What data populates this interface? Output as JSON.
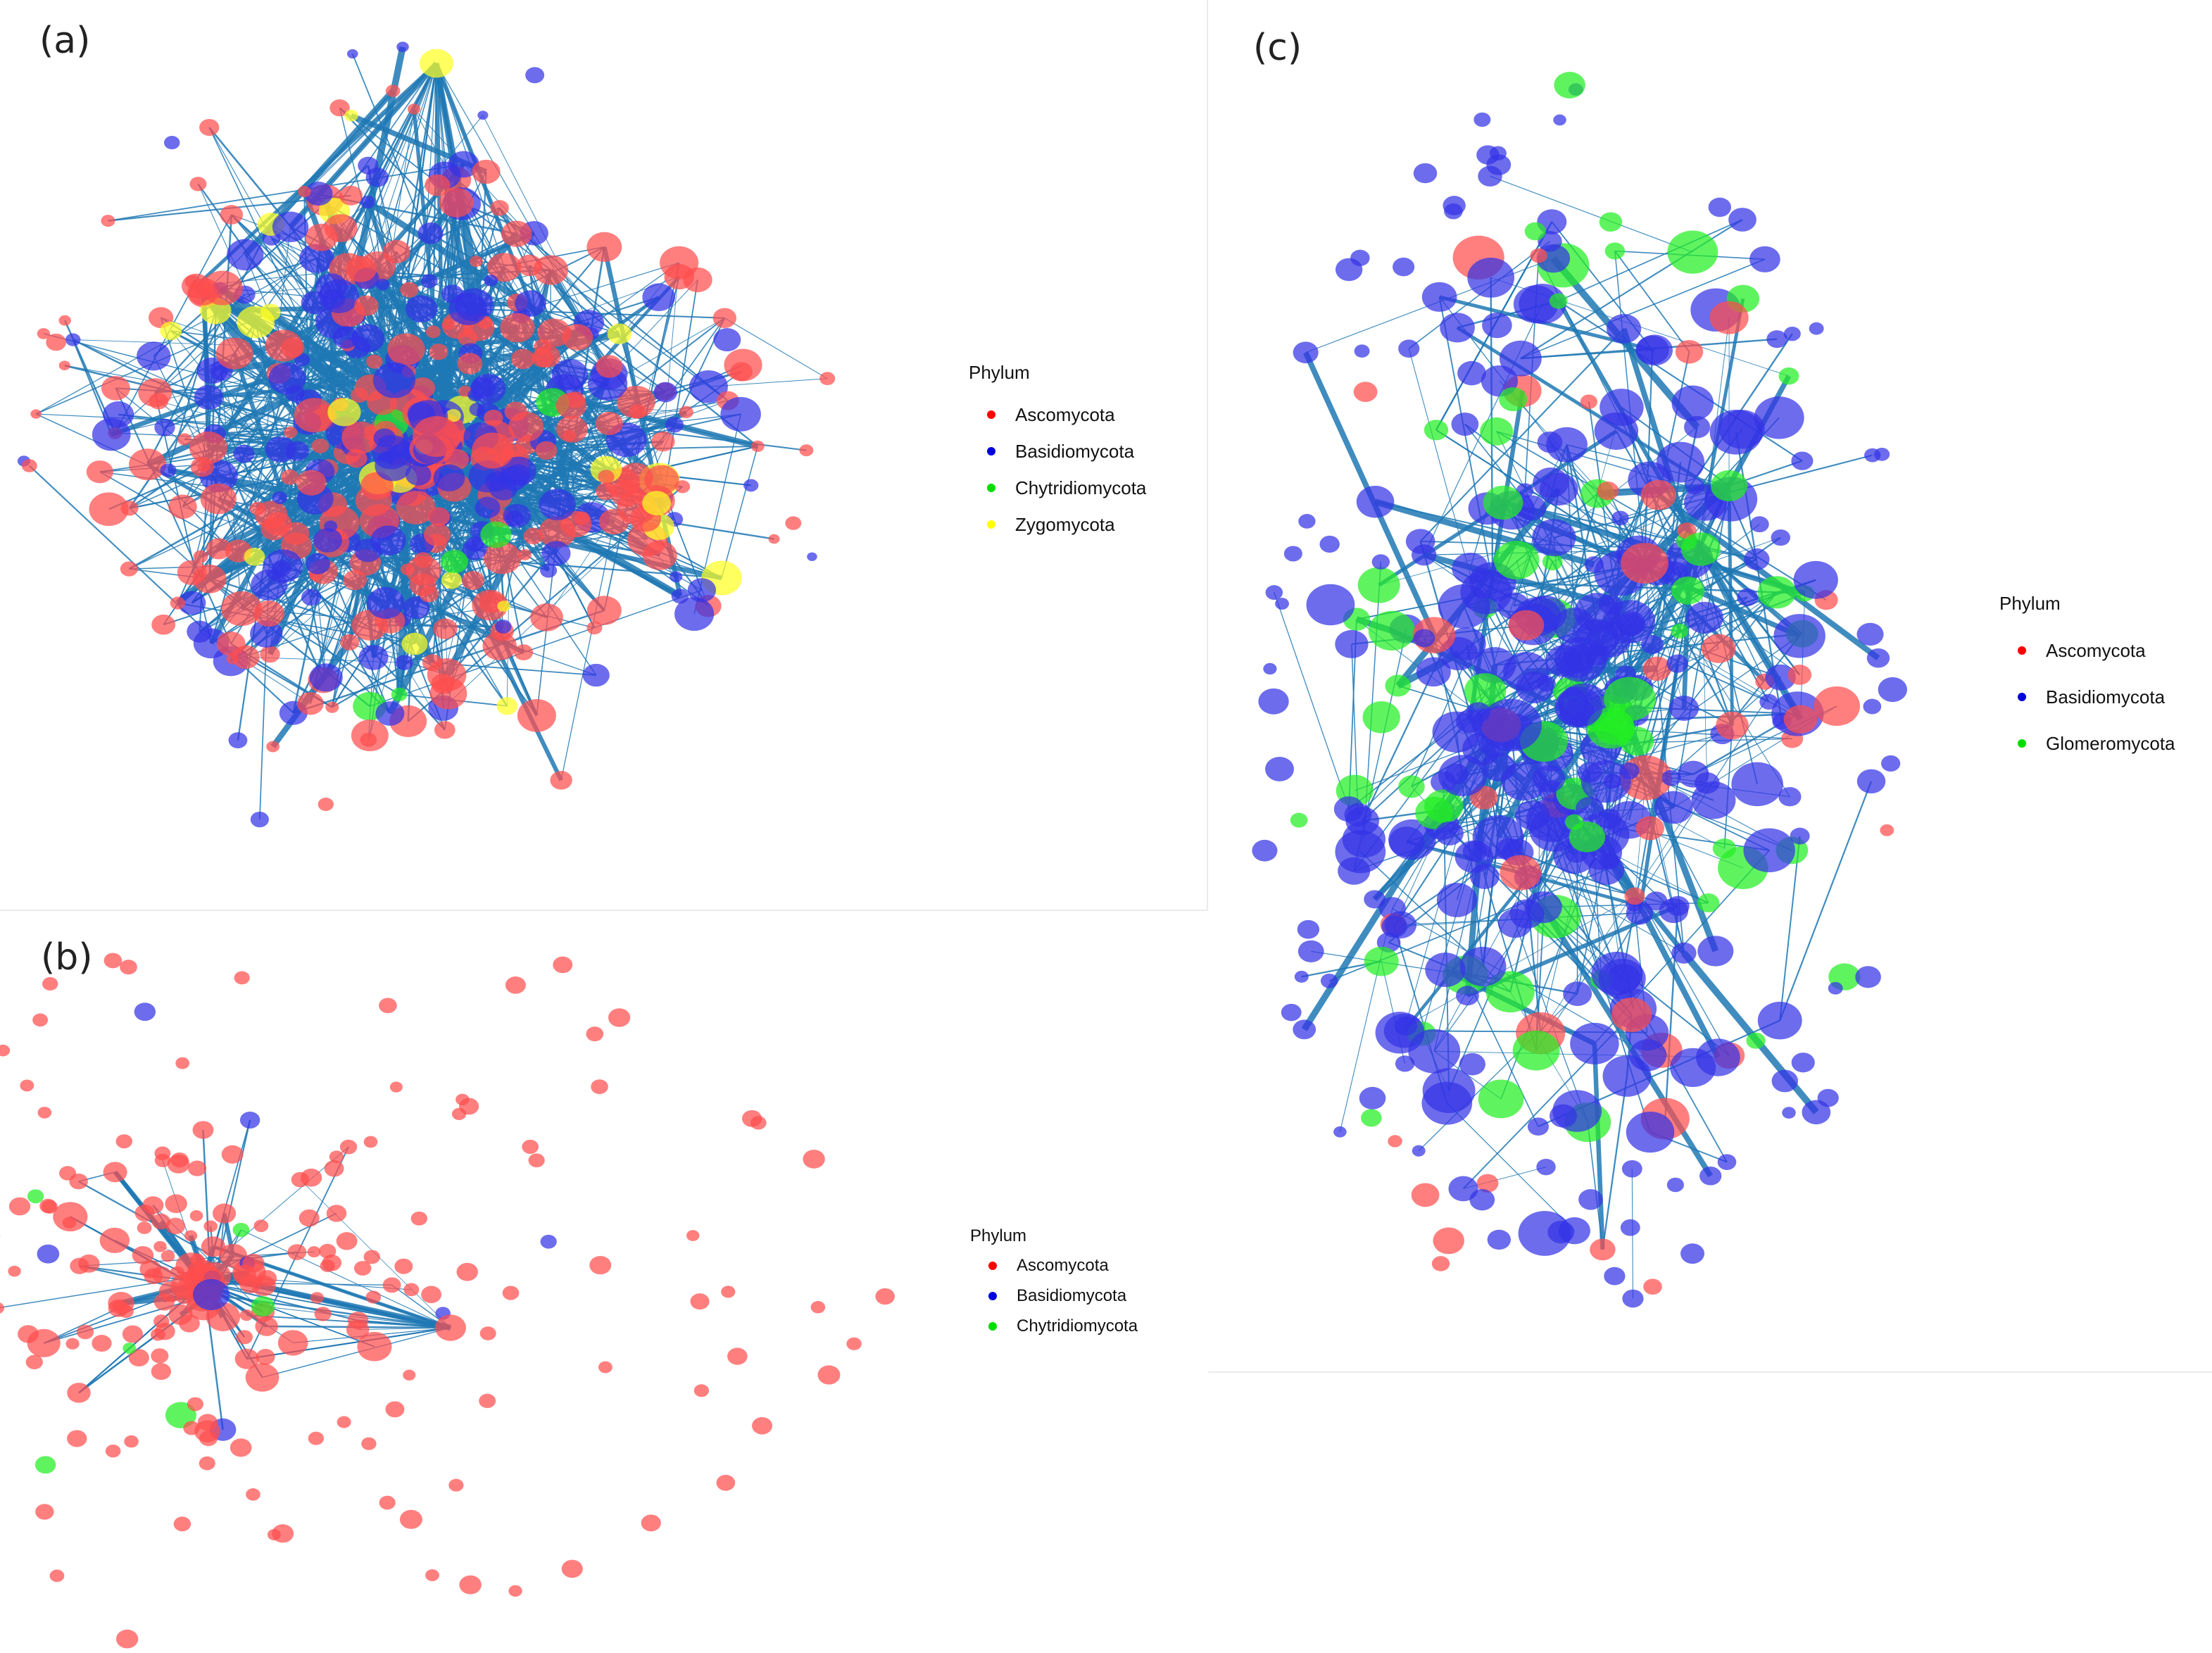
{
  "panels": [
    {
      "id": "a",
      "label": "(a)",
      "legend": {
        "title": "Phylum",
        "items": [
          {
            "label": "Ascomycota",
            "color": "#ff0000"
          },
          {
            "label": "Basidiomycota",
            "color": "#0000dd"
          },
          {
            "label": "Chytridiomycota",
            "color": "#00dd00"
          },
          {
            "label": "Zygomycota",
            "color": "#ffff00"
          }
        ]
      }
    },
    {
      "id": "b",
      "label": "(b)",
      "legend": {
        "title": "Phylum",
        "items": [
          {
            "label": "Ascomycota",
            "color": "#ff0000"
          },
          {
            "label": "Basidiomycota",
            "color": "#0000dd"
          },
          {
            "label": "Chytridiomycota",
            "color": "#00dd00"
          }
        ]
      }
    },
    {
      "id": "c",
      "label": "(c)",
      "legend": {
        "title": "Phylum",
        "items": [
          {
            "label": "Ascomycota",
            "color": "#ff0000"
          },
          {
            "label": "Basidiomycota",
            "color": "#0000dd"
          },
          {
            "label": "Glomeromycota",
            "color": "#00dd00"
          }
        ]
      }
    }
  ],
  "colors": {
    "edge": "#1f78b4",
    "node_red": "#ff4d4d",
    "node_blue": "#3333e6",
    "node_green": "#22ee22",
    "node_yellow": "#ffff22"
  }
}
